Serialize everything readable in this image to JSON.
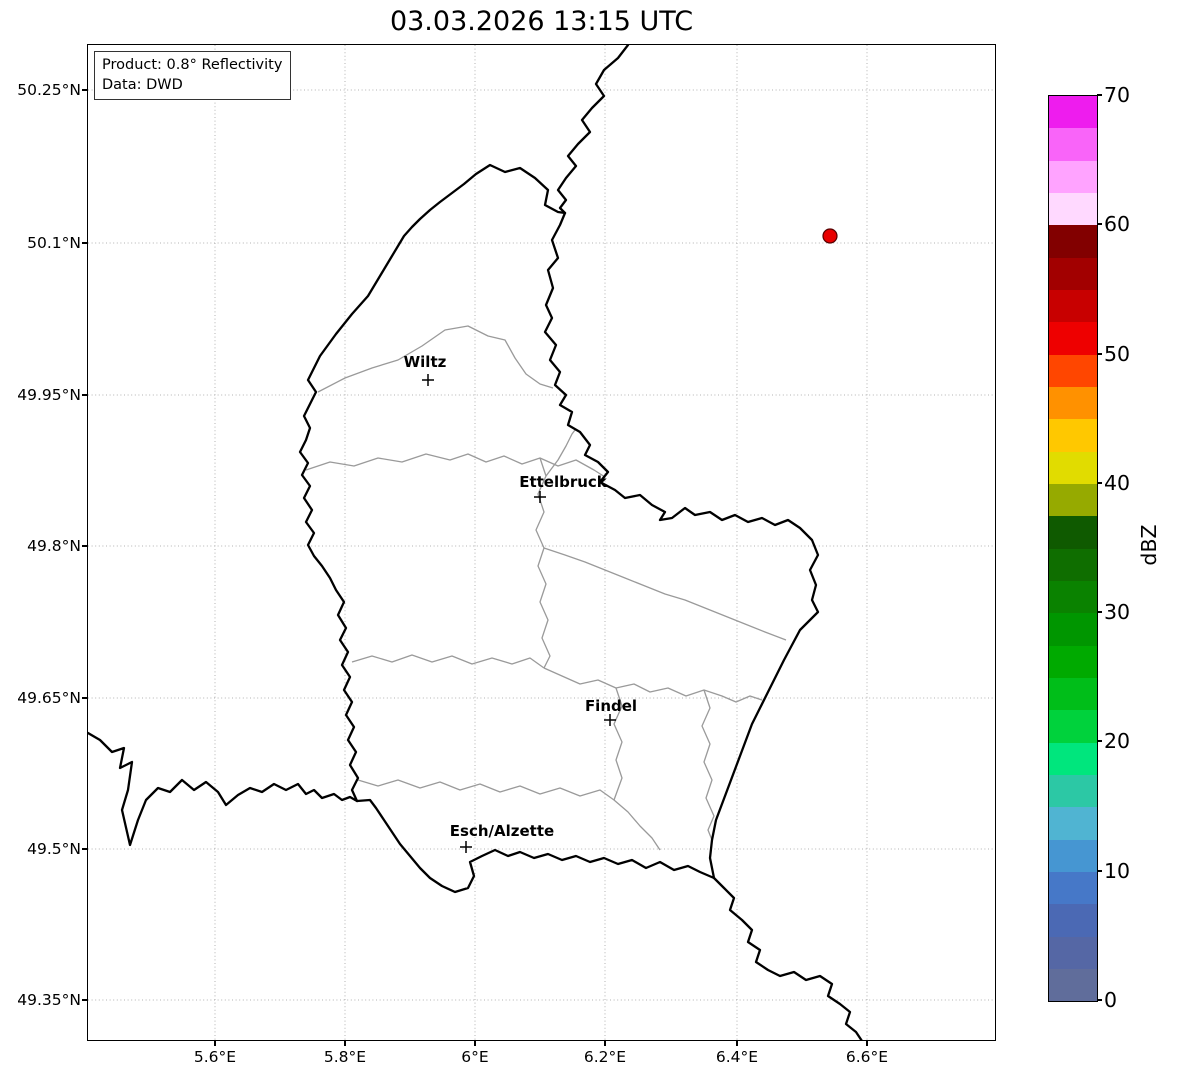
{
  "title": "03.03.2026 13:15 UTC",
  "info_box": {
    "product": "Product: 0.8° Reflectivity",
    "source": "Data: DWD"
  },
  "axes": {
    "y_ticks": [
      "50.25°N",
      "50.1°N",
      "49.95°N",
      "49.8°N",
      "49.65°N",
      "49.5°N",
      "49.35°N"
    ],
    "x_ticks": [
      "5.6°E",
      "5.8°E",
      "6°E",
      "6.2°E",
      "6.4°E",
      "6.6°E"
    ]
  },
  "map": {
    "region": "Luxembourg",
    "cities": [
      {
        "name": "Wiltz"
      },
      {
        "name": "Ettelbruck"
      },
      {
        "name": "Findel"
      },
      {
        "name": "Esch/Alzette"
      }
    ],
    "radar_echo": {
      "approx_lon": "6.55°E",
      "approx_lat": "50.10°N",
      "color": "#e80000"
    }
  },
  "colorbar": {
    "unit": "dBZ",
    "ticks": [
      "70",
      "60",
      "50",
      "40",
      "30",
      "20",
      "10",
      "0"
    ],
    "value_range": [
      0,
      70
    ],
    "band_colors_top_to_bottom": [
      "#ee1cee",
      "#f964f9",
      "#ffa3ff",
      "#ffd9ff",
      "#820000",
      "#a20000",
      "#c80000",
      "#ee0000",
      "#ff4600",
      "#ff9100",
      "#ffc800",
      "#e1dc00",
      "#96aa00",
      "#0f5a00",
      "#0f6e00",
      "#0a8200",
      "#009600",
      "#00aa00",
      "#00be19",
      "#00d23c",
      "#00e67d",
      "#2cc8a5",
      "#50b4d2",
      "#4696d2",
      "#4678c8",
      "#4b69b4",
      "#5567a5",
      "#606d9b"
    ]
  }
}
